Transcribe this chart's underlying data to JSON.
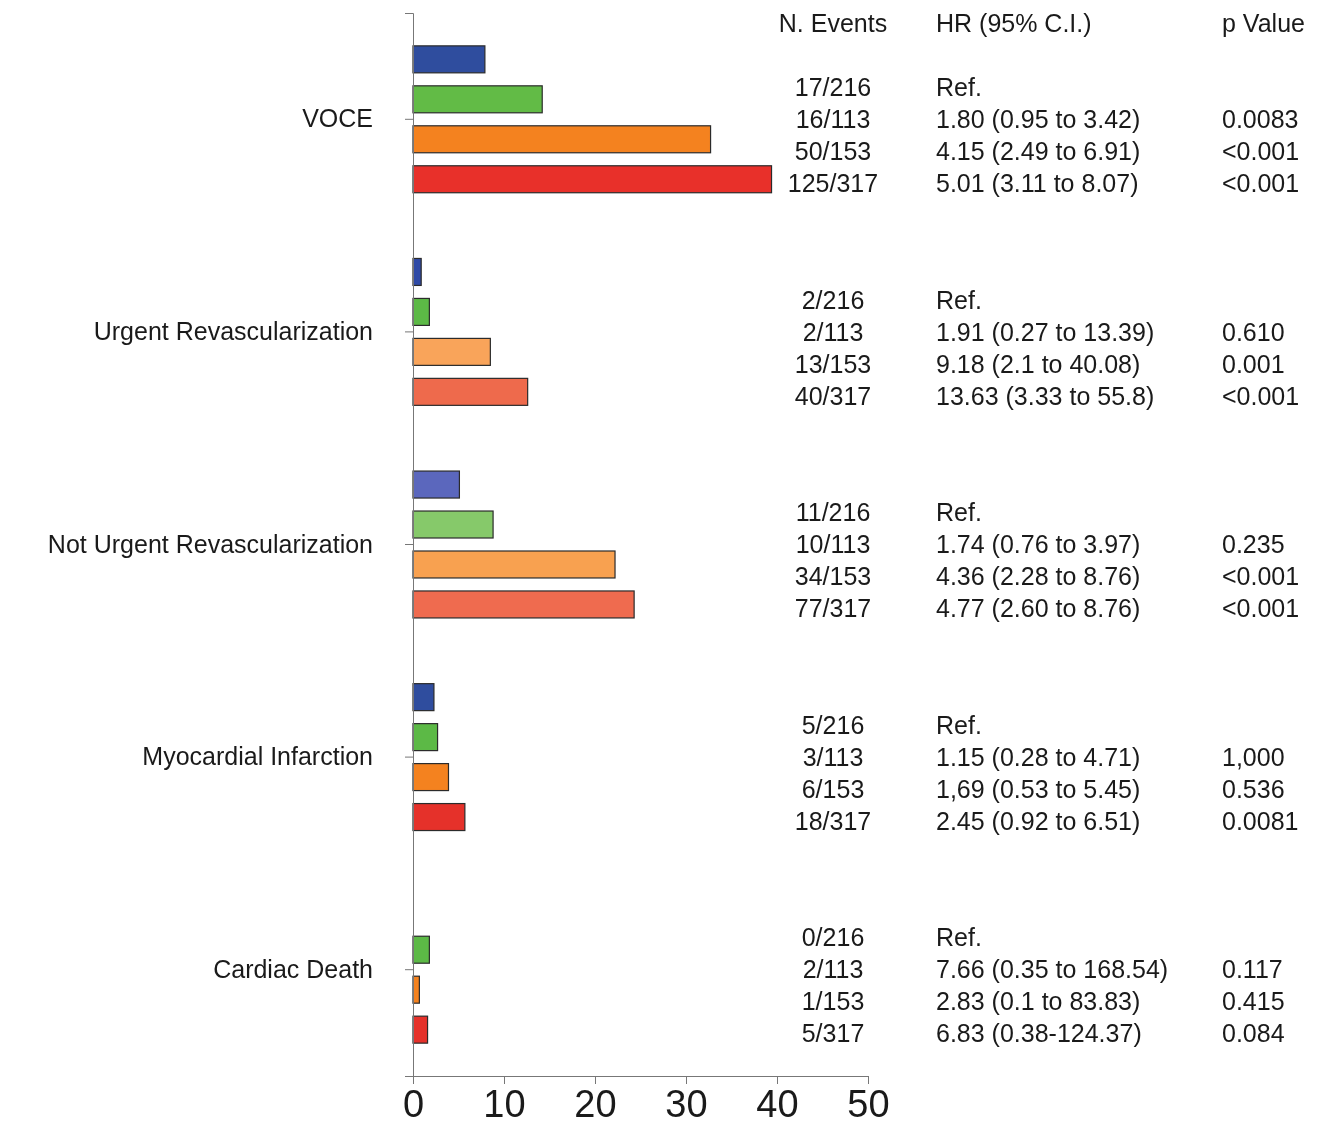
{
  "chart_data": {
    "type": "bar",
    "orientation": "horizontal",
    "categories": [
      "VOCE",
      "Urgent Revascularization",
      "Not Urgent Revascularization",
      "Myocardial Infarction",
      "Cardiac Death"
    ],
    "series": [
      {
        "colors": [
          "#2f4d9e",
          "#2f4aa6",
          "#5b67bd",
          "#2f4d9e",
          "#2f4d9e"
        ],
        "values": [
          7.9,
          0.9,
          5.1,
          2.3,
          0
        ]
      },
      {
        "colors": [
          "#62bb46",
          "#5cb946",
          "#86c96a",
          "#5cb946",
          "#5cb946"
        ],
        "values": [
          14.2,
          1.8,
          8.8,
          2.7,
          1.8
        ]
      },
      {
        "colors": [
          "#f4821f",
          "#f9a45a",
          "#f8a150",
          "#f4821f",
          "#f4821f"
        ],
        "values": [
          32.7,
          8.5,
          22.2,
          3.9,
          0.7
        ]
      },
      {
        "colors": [
          "#e8302a",
          "#ee6a4c",
          "#ef6b4f",
          "#e5312a",
          "#e5312a"
        ],
        "values": [
          39.4,
          12.6,
          24.3,
          5.7,
          1.6
        ]
      }
    ],
    "xlim": [
      0,
      50
    ],
    "xticks": [
      0,
      10,
      20,
      30,
      40,
      50
    ],
    "annotations": [
      "N. Events",
      "HR (95% C.I.)",
      "p Value",
      "17/216",
      "16/113",
      "50/153",
      "125/317",
      "Ref.",
      "1.80 (0.95 to 3.42)",
      "4.15 (2.49 to 6.91)",
      "5.01 (3.11 to 8.07)",
      "0.0083",
      "<0.001",
      "<0.001",
      "2/216",
      "2/113",
      "13/153",
      "40/317",
      "Ref.",
      "1.91 (0.27 to 13.39)",
      "9.18 (2.1 to 40.08)",
      "13.63 (3.33 to 55.8)",
      "0.610",
      "0.001",
      "<0.001",
      "11/216",
      "10/113",
      "34/153",
      "77/317",
      "Ref.",
      "1.74 (0.76 to 3.97)",
      "4.36 (2.28 to 8.76)",
      "4.77 (2.60 to 8.76)",
      "0.235",
      "<0.001",
      "<0.001",
      "5/216",
      "3/113",
      "6/153",
      "18/317",
      "Ref.",
      "1.15 (0.28 to 4.71)",
      "1,69 (0.53 to 5.45)",
      "2.45 (0.92 to 6.51)",
      "1,000",
      "0.536",
      "0.0081",
      "0/216",
      "2/113",
      "1/153",
      "5/317",
      "Ref.",
      "7.66 (0.35 to 168.54)",
      "2.83 (0.1 to 83.83)",
      "6.83 (0.38-124.37)",
      "0.117",
      "0.415",
      "0.084"
    ]
  }
}
